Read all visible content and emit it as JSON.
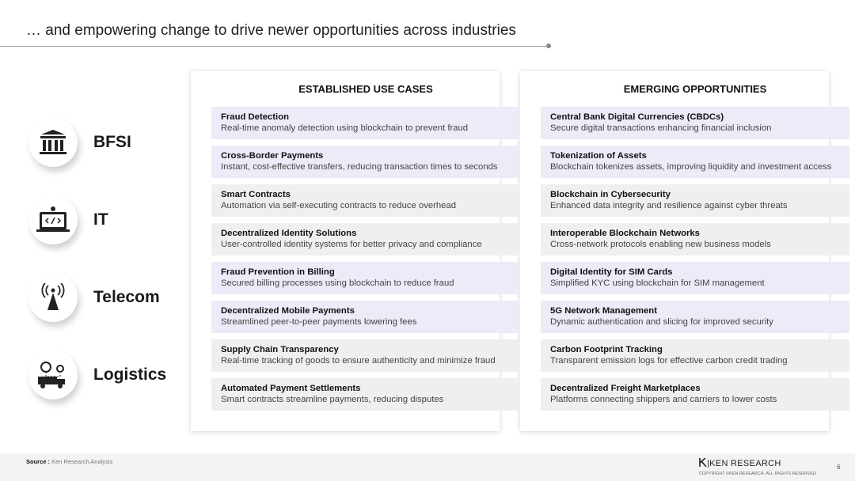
{
  "header": {
    "title": "… and empowering change to drive newer opportunities across industries"
  },
  "columns": [
    "ESTABLISHED USE CASES",
    "EMERGING OPPORTUNITIES"
  ],
  "industries": [
    {
      "name": "BFSI",
      "established": [
        {
          "title": "Fraud Detection",
          "desc": "Real-time anomaly detection using blockchain to prevent fraud"
        },
        {
          "title": "Cross-Border Payments",
          "desc": "Instant, cost-effective transfers, reducing transaction times to seconds"
        }
      ],
      "emerging": [
        {
          "title": "Central Bank Digital Currencies (CBDCs)",
          "desc": "Secure digital transactions enhancing financial inclusion"
        },
        {
          "title": "Tokenization of Assets",
          "desc": "Blockchain tokenizes assets, improving liquidity and investment access"
        }
      ]
    },
    {
      "name": "IT",
      "established": [
        {
          "title": "Smart Contracts",
          "desc": "Automation via self-executing contracts to reduce overhead"
        },
        {
          "title": "Decentralized Identity Solutions",
          "desc": "User-controlled identity systems for better privacy and compliance"
        }
      ],
      "emerging": [
        {
          "title": "Blockchain in Cybersecurity",
          "desc": "Enhanced data integrity and resilience against cyber threats"
        },
        {
          "title": "Interoperable Blockchain Networks",
          "desc": "Cross-network protocols enabling new business models"
        }
      ]
    },
    {
      "name": "Telecom",
      "established": [
        {
          "title": "Fraud Prevention in Billing",
          "desc": "Secured billing processes using blockchain to reduce fraud"
        },
        {
          "title": "Decentralized Mobile Payments",
          "desc": "Streamlined peer-to-peer payments lowering fees"
        }
      ],
      "emerging": [
        {
          "title": "Digital Identity for SIM Cards",
          "desc": "Simplified KYC using blockchain for SIM management"
        },
        {
          "title": "5G Network Management",
          "desc": "Dynamic authentication and slicing for improved security"
        }
      ]
    },
    {
      "name": "Logistics",
      "established": [
        {
          "title": "Supply Chain Transparency",
          "desc": "Real-time tracking of goods to ensure authenticity and minimize fraud"
        },
        {
          "title": "Automated Payment Settlements",
          "desc": "Smart contracts streamline payments, reducing disputes"
        }
      ],
      "emerging": [
        {
          "title": "Carbon Footprint Tracking",
          "desc": "Transparent emission logs for effective carbon credit trading"
        },
        {
          "title": "Decentralized Freight Marketplaces",
          "desc": "Platforms connecting shippers and carriers to lower costs"
        }
      ]
    }
  ],
  "footer": {
    "source_label": "Source :",
    "source": "Ken Research Analysis",
    "brand": "KEN RESEARCH",
    "copyright": "COPYRIGHT ©KEN RESEARCH. ALL RIGHTS RESERVED",
    "page": "6"
  }
}
